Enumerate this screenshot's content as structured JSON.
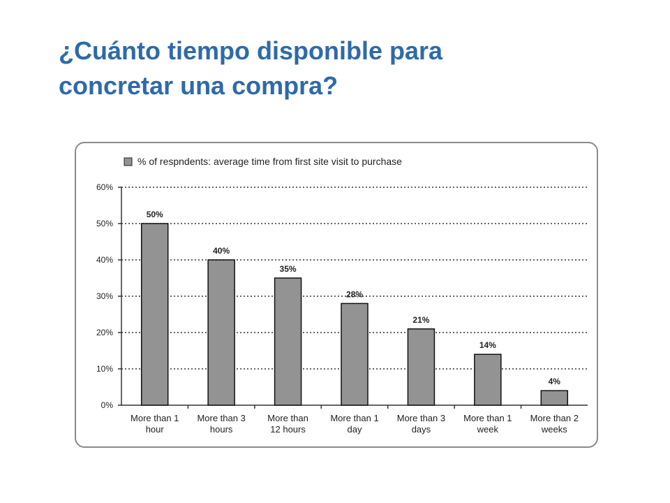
{
  "slide": {
    "title_line1": "¿Cuánto tiempo disponible para",
    "title_line2": "concretar una compra?"
  },
  "chart_data": {
    "type": "bar",
    "legend_position": "top-left",
    "legend_label": "% of respndents: average time from first site visit to purchase",
    "series_color": "#939393",
    "categories": [
      [
        "More than 1",
        "hour"
      ],
      [
        "More than 3",
        "hours"
      ],
      [
        "More than",
        "12 hours"
      ],
      [
        "More than 1",
        "day"
      ],
      [
        "More than 3",
        "days"
      ],
      [
        "More than 1",
        "week"
      ],
      [
        "More than 2",
        "weeks"
      ]
    ],
    "values": [
      50,
      40,
      35,
      28,
      21,
      14,
      4
    ],
    "data_labels": [
      "50%",
      "40%",
      "35%",
      "28%",
      "21%",
      "14%",
      "4%"
    ],
    "ylim": [
      0,
      60
    ],
    "y_ticks": [
      0,
      10,
      20,
      30,
      40,
      50,
      60
    ],
    "y_tick_labels": [
      "0%",
      "10%",
      "20%",
      "30%",
      "40%",
      "50%",
      "60%"
    ],
    "grid": true,
    "grid_style": "dotted"
  }
}
